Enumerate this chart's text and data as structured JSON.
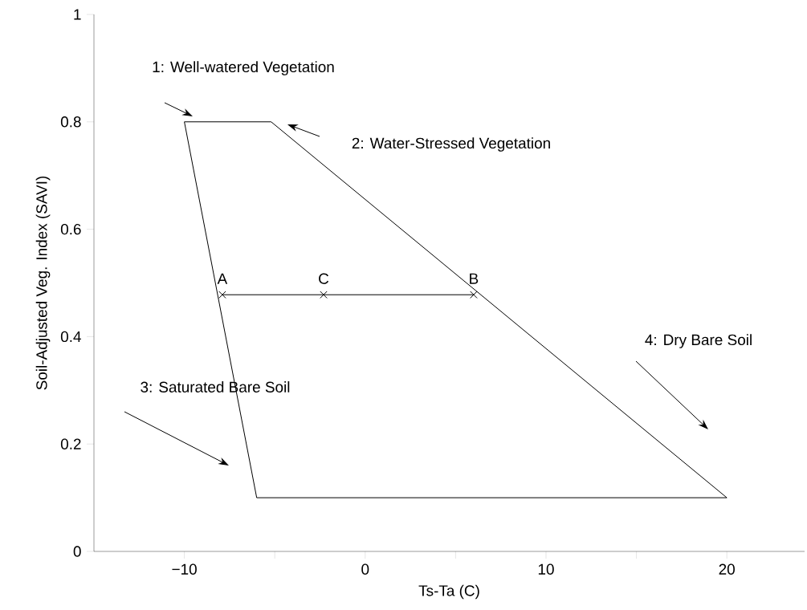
{
  "chart_data": {
    "type": "line",
    "xlabel": "Ts-Ta (C)",
    "ylabel": "Soil-Adjusted Veg. Index (SAVI)",
    "xlim": [
      -15,
      24.3
    ],
    "ylim": [
      0,
      1
    ],
    "xticks": [
      {
        "value": -10,
        "label": "−10"
      },
      {
        "value": -5,
        "label": null
      },
      {
        "value": 0,
        "label": "0"
      },
      {
        "value": 5,
        "label": null
      },
      {
        "value": 10,
        "label": "10"
      },
      {
        "value": 15,
        "label": null
      },
      {
        "value": 20,
        "label": "20"
      }
    ],
    "yticks": [
      0,
      0.2,
      0.4,
      0.6,
      0.8,
      1
    ],
    "series": [
      {
        "x": [
          -10,
          -5.2,
          20
        ],
        "values": [
          0.8,
          0.8,
          0.1
        ],
        "color": "#000000",
        "marker": "none"
      },
      {
        "x": [
          -10,
          -6,
          20
        ],
        "values": [
          0.8,
          0.1,
          0.1
        ],
        "color": "#000000",
        "marker": "none"
      },
      {
        "x": [
          -7.9,
          -2.3,
          6.0
        ],
        "values": [
          0.478,
          0.478,
          0.478
        ],
        "color": "#000000",
        "marker": "cross"
      }
    ],
    "annotations": [
      "1: Well-watered Vegetation",
      "2: Water-Stressed Vegetation",
      "3: Saturated Bare Soil",
      "4: Dry Bare Soil",
      {
        "text": "A",
        "x": -7.9,
        "y": 0.478
      },
      {
        "text": "C",
        "x": -2.3,
        "y": 0.478
      },
      {
        "text": "B",
        "x": 6.0,
        "y": 0.478
      }
    ]
  }
}
